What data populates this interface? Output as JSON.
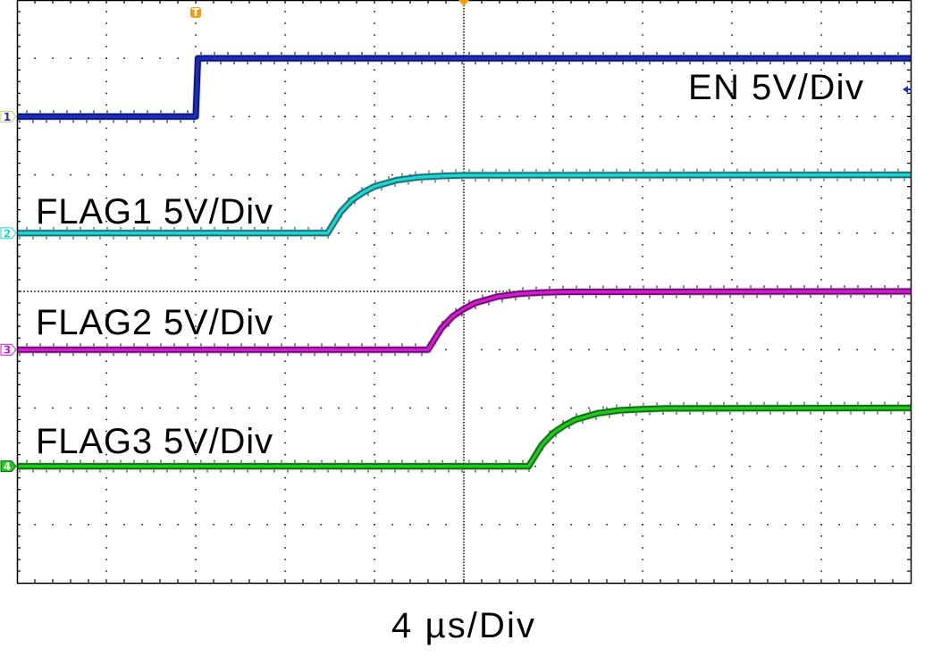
{
  "chart_data": {
    "type": "line",
    "title": "",
    "xlabel": "4 µs/Div",
    "ylabel": "",
    "x_unit": "µs",
    "y_unit": "V",
    "time_per_div_us": 4,
    "xlim": [
      -8,
      32
    ],
    "grid": true,
    "trigger_marker": "T",
    "series": [
      {
        "label": "EN 5V/Div",
        "channel": "1",
        "color": "#1a2fc0",
        "volts_per_div": 5,
        "offset_div": 3,
        "x": [
          -8,
          0,
          0.1,
          32
        ],
        "y": [
          0,
          0,
          5,
          5
        ]
      },
      {
        "label": "FLAG1 5V/Div",
        "channel": "2",
        "color": "#22d3d3",
        "volts_per_div": 5,
        "offset_div": 1,
        "x": [
          -8,
          5.9,
          6.5,
          7.0,
          7.5,
          8.0,
          9.0,
          10.0,
          11.0,
          12.0,
          32
        ],
        "y": [
          0,
          0,
          1.85,
          2.85,
          3.5,
          4.0,
          4.55,
          4.8,
          4.9,
          4.96,
          5
        ]
      },
      {
        "label": "FLAG2 5V/Div",
        "channel": "3",
        "color": "#d21ad2",
        "volts_per_div": 5,
        "offset_div": -1,
        "x": [
          -8,
          10.4,
          11.0,
          11.5,
          12.0,
          12.5,
          13.5,
          14.5,
          15.5,
          16.5,
          32
        ],
        "y": [
          0,
          0,
          1.85,
          2.85,
          3.5,
          4.0,
          4.55,
          4.8,
          4.9,
          4.96,
          5
        ]
      },
      {
        "label": "FLAG3 5V/Div",
        "channel": "4",
        "color": "#1ec81e",
        "volts_per_div": 5,
        "offset_div": -3,
        "x": [
          -8,
          14.9,
          15.5,
          16.0,
          16.5,
          17.0,
          18.0,
          19.0,
          20.0,
          21.0,
          32
        ],
        "y": [
          0,
          0,
          1.85,
          2.85,
          3.5,
          4.0,
          4.55,
          4.8,
          4.9,
          4.96,
          5
        ]
      }
    ]
  },
  "colors": {
    "trigger": "#f59a12",
    "grid": "#000000"
  }
}
